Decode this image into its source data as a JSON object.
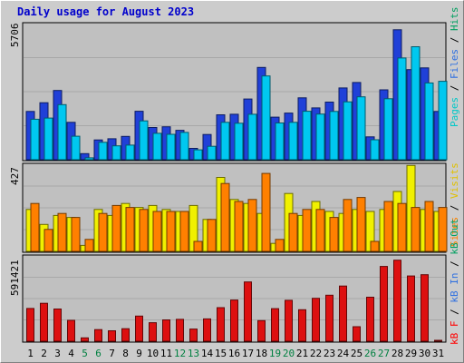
{
  "title": "Daily usage for August 2023",
  "chart_data": [
    {
      "type": "bar",
      "panel": "top",
      "ymax_label": "5706",
      "ylim": [
        0,
        5706
      ],
      "categories": [
        "1",
        "2",
        "3",
        "4",
        "5",
        "6",
        "7",
        "8",
        "9",
        "10",
        "11",
        "12",
        "13",
        "14",
        "15",
        "16",
        "17",
        "18",
        "19",
        "20",
        "21",
        "22",
        "23",
        "24",
        "25",
        "26",
        "27",
        "28",
        "29",
        "30",
        "31"
      ],
      "weekend_days": [
        "5",
        "6",
        "12",
        "13",
        "19",
        "20",
        "26",
        "27"
      ],
      "legend": [
        "Pages",
        "Files",
        "Hits"
      ],
      "legend_colors": [
        "#00E0E0",
        "#3070E0",
        "#00A060"
      ],
      "series": [
        {
          "name": "Hits",
          "color": "#2040D8",
          "values": [
            2050,
            2420,
            2940,
            1590,
            260,
            840,
            890,
            990,
            2060,
            1370,
            1400,
            1250,
            480,
            1070,
            1910,
            1930,
            2580,
            3920,
            1810,
            1980,
            2630,
            2200,
            2450,
            3050,
            3280,
            970,
            2970,
            5520,
            3830,
            3900,
            2050
          ]
        },
        {
          "name": "Files",
          "color": "#00C8F0",
          "values": [
            1720,
            1770,
            2340,
            1000,
            80,
            740,
            590,
            620,
            1650,
            1120,
            1080,
            1160,
            420,
            570,
            1590,
            1550,
            1930,
            3560,
            1560,
            1590,
            2060,
            1940,
            2050,
            2460,
            2670,
            850,
            2590,
            4320,
            4800,
            3260,
            3330
          ]
        }
      ]
    },
    {
      "type": "bar",
      "panel": "middle",
      "ymax_label": "427",
      "ylim": [
        0,
        427
      ],
      "categories": [
        "1",
        "2",
        "3",
        "4",
        "5",
        "6",
        "7",
        "8",
        "9",
        "10",
        "11",
        "12",
        "13",
        "14",
        "15",
        "16",
        "17",
        "18",
        "19",
        "20",
        "21",
        "22",
        "23",
        "24",
        "25",
        "26",
        "27",
        "28",
        "29",
        "30",
        "31"
      ],
      "legend": [
        "Visits",
        "Sites"
      ],
      "legend_colors": [
        "#F0D000",
        "#FF8000"
      ],
      "series": [
        {
          "name": "Visits",
          "color": "#F0F000",
          "values": [
            210,
            135,
            180,
            170,
            30,
            210,
            180,
            240,
            220,
            230,
            210,
            200,
            230,
            160,
            370,
            260,
            240,
            190,
            40,
            290,
            180,
            250,
            200,
            190,
            210,
            200,
            210,
            300,
            430,
            210,
            200
          ]
        },
        {
          "name": "Sites",
          "color": "#FF8000",
          "values": [
            240,
            110,
            190,
            170,
            60,
            190,
            230,
            220,
            210,
            200,
            200,
            200,
            50,
            160,
            340,
            250,
            260,
            390,
            60,
            190,
            210,
            210,
            170,
            260,
            270,
            50,
            250,
            240,
            220,
            250,
            220
          ]
        }
      ]
    },
    {
      "type": "bar",
      "panel": "bottom",
      "ymax_label": "591421",
      "ylim": [
        0,
        591421
      ],
      "categories": [
        "1",
        "2",
        "3",
        "4",
        "5",
        "6",
        "7",
        "8",
        "9",
        "10",
        "11",
        "12",
        "13",
        "14",
        "15",
        "16",
        "17",
        "18",
        "19",
        "20",
        "21",
        "22",
        "23",
        "24",
        "25",
        "26",
        "27",
        "28",
        "29",
        "30",
        "31"
      ],
      "legend": [
        "kB F",
        "kB In",
        "kB Out"
      ],
      "legend_colors": [
        "#FF0000",
        "#3070E0",
        "#00A060"
      ],
      "series": [
        {
          "name": "kB F",
          "color": "#DD1010",
          "values": [
            232000,
            269000,
            228000,
            148000,
            24000,
            82000,
            74000,
            89000,
            178000,
            131000,
            151000,
            155000,
            86000,
            158000,
            238000,
            292000,
            420000,
            146000,
            231000,
            290000,
            223000,
            304000,
            326000,
            391000,
            103000,
            312000,
            530000,
            574000,
            462000,
            471000,
            3000
          ]
        }
      ]
    }
  ]
}
